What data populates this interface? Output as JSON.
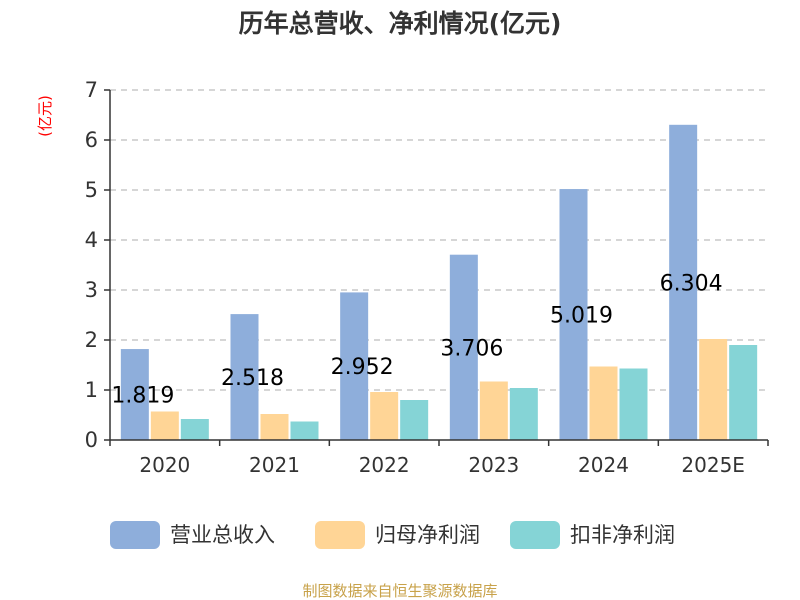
{
  "chart_data": {
    "type": "bar",
    "title": "历年总营收、净利情况(亿元)",
    "unit_label": "(亿元)",
    "categories": [
      "2020",
      "2021",
      "2022",
      "2023",
      "2024",
      "2025E"
    ],
    "series": [
      {
        "name": "营业总收入",
        "color": "#8eaedb",
        "values": [
          1.819,
          2.518,
          2.952,
          3.706,
          5.019,
          6.304
        ]
      },
      {
        "name": "归母净利润",
        "color": "#ffd596",
        "values": [
          0.57,
          0.52,
          0.96,
          1.17,
          1.47,
          2.02
        ]
      },
      {
        "name": "扣非净利润",
        "color": "#85d4d6",
        "values": [
          0.42,
          0.37,
          0.8,
          1.04,
          1.43,
          1.9
        ]
      }
    ],
    "data_labels": [
      "1.819",
      "2.518",
      "2.952",
      "3.706",
      "5.019",
      "6.304"
    ],
    "ylim": [
      0,
      7
    ],
    "yticks": [
      "0",
      "1",
      "2",
      "3",
      "4",
      "5",
      "6",
      "7"
    ],
    "grid": true,
    "legend_position": "bottom",
    "source": "制图数据来自恒生聚源数据库"
  }
}
